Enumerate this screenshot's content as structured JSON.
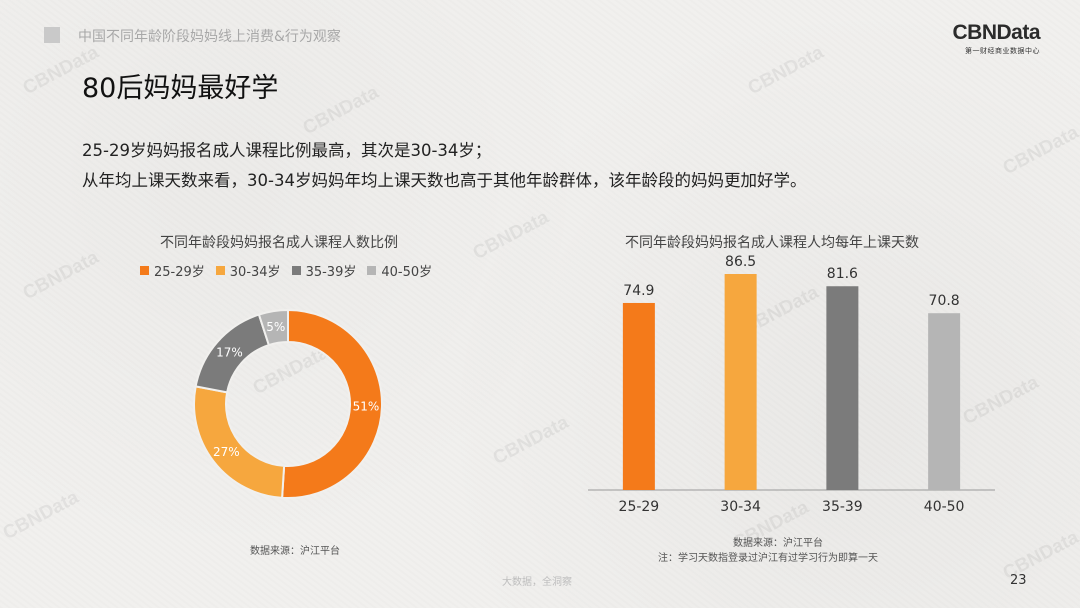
{
  "header": {
    "breadcrumb": "中国不同年龄阶段妈妈线上消费&行为观察",
    "brand_logo": "CBNData",
    "brand_sub": "第一财经商业数据中心"
  },
  "title": "80后妈妈最好学",
  "intro": [
    "25-29岁妈妈报名成人课程比例最高，其次是30-34岁；",
    "从年均上课天数来看，30-34岁妈妈年均上课天数也高于其他年龄群体，该年龄段的妈妈更加好学。"
  ],
  "chart_data": [
    {
      "type": "pie",
      "title": "不同年龄段妈妈报名成人课程人数比例",
      "legend_position": "top",
      "categories": [
        "25-29岁",
        "30-34岁",
        "35-39岁",
        "40-50岁"
      ],
      "values": [
        51,
        27,
        17,
        5
      ],
      "value_labels": [
        "51%",
        "27%",
        "17%",
        "5%"
      ],
      "colors": [
        "#f47a1a",
        "#f6a73e",
        "#7b7b7b",
        "#b5b5b5"
      ]
    },
    {
      "type": "bar",
      "title": "不同年龄段妈妈报名成人课程人均每年上课天数",
      "categories": [
        "25-29",
        "30-34",
        "35-39",
        "40-50"
      ],
      "values": [
        74.9,
        86.5,
        81.6,
        70.8
      ],
      "colors": [
        "#f47a1a",
        "#f6a73e",
        "#7b7b7b",
        "#b5b5b5"
      ],
      "ylim": [
        0,
        86.5
      ],
      "grid": false
    }
  ],
  "donut_source": "数据来源：沪江平台",
  "bar_source": "数据来源：沪江平台",
  "bar_note": "注：学习天数指登录过沪江有过学习行为即算一天",
  "footer": "大数据，全洞察",
  "page_number": "23",
  "watermark_text": "CBNData"
}
